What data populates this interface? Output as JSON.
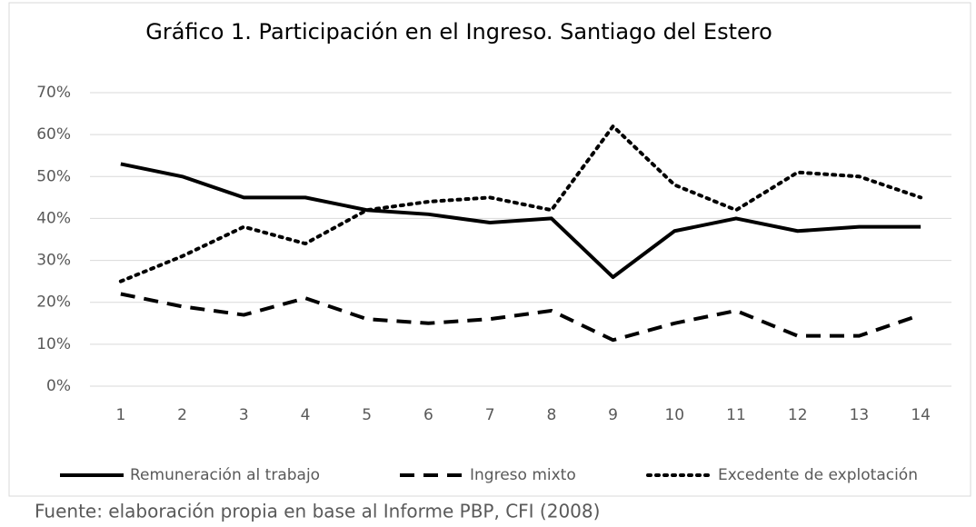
{
  "chart_data": {
    "type": "line",
    "title": "Gráfico 1. Participación  en el Ingreso. Santiago del Estero",
    "categories": [
      "1",
      "2",
      "3",
      "4",
      "5",
      "6",
      "7",
      "8",
      "9",
      "10",
      "11",
      "12",
      "13",
      "14"
    ],
    "series": [
      {
        "name": "Remuneración al trabajo",
        "color": "#000000",
        "dash": "solid",
        "values": [
          53,
          50,
          45,
          45,
          42,
          41,
          39,
          40,
          26,
          37,
          40,
          37,
          38,
          38
        ]
      },
      {
        "name": "Ingreso mixto",
        "color": "#000000",
        "dash": "dashed",
        "values": [
          22,
          19,
          17,
          21,
          16,
          15,
          16,
          18,
          11,
          15,
          18,
          12,
          12,
          17
        ]
      },
      {
        "name": "Excedente de explotación",
        "color": "#000000",
        "dash": "dotted",
        "values": [
          25,
          31,
          38,
          34,
          42,
          44,
          45,
          42,
          62,
          48,
          42,
          51,
          50,
          45
        ]
      }
    ],
    "ylim": [
      0,
      70
    ],
    "yticks": [
      {
        "value": 0,
        "label": "0%"
      },
      {
        "value": 10,
        "label": "10%"
      },
      {
        "value": 20,
        "label": "20%"
      },
      {
        "value": 30,
        "label": "30%"
      },
      {
        "value": 40,
        "label": "40%"
      },
      {
        "value": 50,
        "label": "50%"
      },
      {
        "value": 60,
        "label": "60%"
      },
      {
        "value": 70,
        "label": "70%"
      }
    ],
    "grid": true,
    "legend": "bottom",
    "source": "Fuente: elaboración propia en base al Informe PBP, CFI (2008)"
  }
}
